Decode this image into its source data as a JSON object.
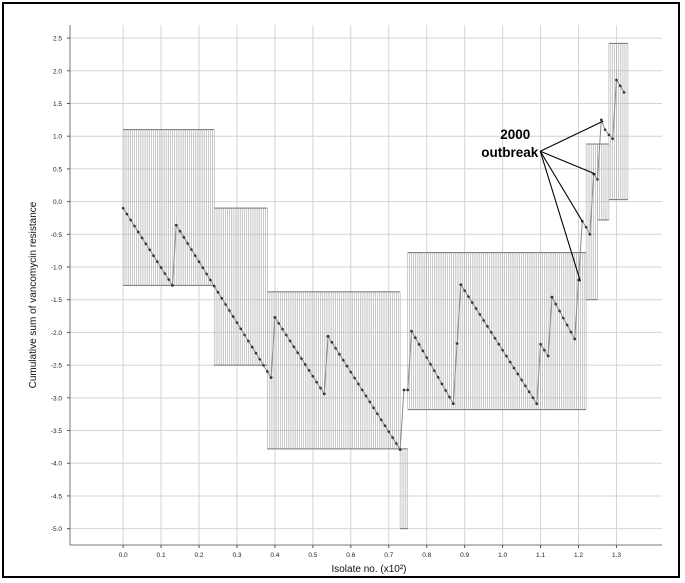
{
  "chart_data": {
    "type": "line",
    "xlabel": "Isolate no. (x10²)",
    "ylabel": "Cumulative sum of vancomycin resistance",
    "xlim": [
      -0.14,
      1.42
    ],
    "ylim": [
      -5.25,
      2.7
    ],
    "x_ticks": [
      "0.0",
      "0.1",
      "0.2",
      "0.3",
      "0.4",
      "0.5",
      "0.6",
      "0.7",
      "0.8",
      "0.9",
      "1.0",
      "1.1",
      "1.2",
      "1.3"
    ],
    "x_tick_values": [
      0.0,
      0.1,
      0.2,
      0.3,
      0.4,
      0.5,
      0.6,
      0.7,
      0.8,
      0.9,
      1.0,
      1.1,
      1.2,
      1.3
    ],
    "y_ticks": [
      "2.5",
      "2.0",
      "1.5",
      "1.0",
      "0.5",
      "0.0",
      "-0.5",
      "-1.0",
      "-1.5",
      "-2.0",
      "-2.5",
      "-3.0",
      "-3.5",
      "-4.0",
      "-4.5",
      "-5.0"
    ],
    "y_tick_values": [
      2.5,
      2.0,
      1.5,
      1.0,
      0.5,
      0.0,
      -0.5,
      -1.0,
      -1.5,
      -2.0,
      -2.5,
      -3.0,
      -3.5,
      -4.0,
      -4.5,
      -5.0
    ],
    "grid": true,
    "annotation": {
      "lines": [
        "2000",
        "outbreak"
      ],
      "anchor": [
        1.0993,
        0.77
      ],
      "targets": [
        [
          1.265,
          1.23
        ],
        [
          1.245,
          0.42
        ],
        [
          1.21,
          -0.3
        ],
        [
          1.205,
          -1.22
        ]
      ]
    },
    "segments": [
      {
        "x": [
          0.0,
          0.01,
          0.02,
          0.03,
          0.04,
          0.05,
          0.06,
          0.07,
          0.08,
          0.09,
          0.1,
          0.11,
          0.12,
          0.13
        ],
        "y": [
          -0.1,
          -0.191,
          -0.282,
          -0.373,
          -0.464,
          -0.555,
          -0.646,
          -0.736,
          -0.827,
          -0.918,
          -1.009,
          -1.1,
          -1.191,
          -1.28
        ]
      },
      {
        "x": [
          0.13,
          0.14
        ],
        "y": [
          -1.28,
          -0.36
        ]
      },
      {
        "x": [
          0.14,
          0.15,
          0.16,
          0.17,
          0.18,
          0.19,
          0.2,
          0.21,
          0.22,
          0.23,
          0.24,
          0.25,
          0.26,
          0.27,
          0.28,
          0.29,
          0.3,
          0.31,
          0.32,
          0.33,
          0.34,
          0.35,
          0.36,
          0.37,
          0.38,
          0.39
        ],
        "y": [
          -0.36,
          -0.453,
          -0.546,
          -0.64,
          -0.733,
          -0.826,
          -0.919,
          -1.012,
          -1.106,
          -1.199,
          -1.292,
          -1.385,
          -1.478,
          -1.572,
          -1.665,
          -1.758,
          -1.851,
          -1.944,
          -2.038,
          -2.131,
          -2.224,
          -2.317,
          -2.41,
          -2.504,
          -2.597,
          -2.69
        ]
      },
      {
        "x": [
          0.39,
          0.4
        ],
        "y": [
          -2.69,
          -1.77
        ]
      },
      {
        "x": [
          0.4,
          0.41,
          0.42,
          0.43,
          0.44,
          0.45,
          0.46,
          0.47,
          0.48,
          0.49,
          0.5,
          0.51,
          0.52,
          0.53
        ],
        "y": [
          -1.77,
          -1.86,
          -1.95,
          -2.04,
          -2.13,
          -2.22,
          -2.31,
          -2.4,
          -2.49,
          -2.58,
          -2.67,
          -2.76,
          -2.85,
          -2.94
        ]
      },
      {
        "x": [
          0.53,
          0.54
        ],
        "y": [
          -2.94,
          -2.06
        ]
      },
      {
        "x": [
          0.54,
          0.55,
          0.56,
          0.57,
          0.58,
          0.59,
          0.6,
          0.61,
          0.62,
          0.63,
          0.64,
          0.65,
          0.66,
          0.67,
          0.68,
          0.69,
          0.7,
          0.71,
          0.72,
          0.73
        ],
        "y": [
          -2.06,
          -2.151,
          -2.242,
          -2.333,
          -2.424,
          -2.515,
          -2.606,
          -2.697,
          -2.788,
          -2.879,
          -2.971,
          -3.062,
          -3.153,
          -3.244,
          -3.335,
          -3.426,
          -3.517,
          -3.608,
          -3.699,
          -3.79
        ]
      },
      {
        "x": [
          0.73,
          0.74,
          0.75,
          0.76
        ],
        "y": [
          -3.79,
          -2.88,
          -2.88,
          -1.98
        ]
      },
      {
        "x": [
          0.76,
          0.77,
          0.78,
          0.79,
          0.8,
          0.81,
          0.82,
          0.83,
          0.84,
          0.85,
          0.86,
          0.87
        ],
        "y": [
          -1.98,
          -2.081,
          -2.182,
          -2.283,
          -2.384,
          -2.485,
          -2.585,
          -2.686,
          -2.787,
          -2.888,
          -2.989,
          -3.09
        ]
      },
      {
        "x": [
          0.87,
          0.88,
          0.89
        ],
        "y": [
          -3.09,
          -2.17,
          -1.27
        ]
      },
      {
        "x": [
          0.89,
          0.9,
          0.91,
          0.92,
          0.93,
          0.94,
          0.95,
          0.96,
          0.97,
          0.98,
          0.99,
          1.0,
          1.01,
          1.02,
          1.03,
          1.04,
          1.05,
          1.06,
          1.07,
          1.08,
          1.09
        ],
        "y": [
          -1.27,
          -1.361,
          -1.452,
          -1.543,
          -1.634,
          -1.725,
          -1.816,
          -1.907,
          -1.998,
          -2.089,
          -2.18,
          -2.271,
          -2.362,
          -2.453,
          -2.544,
          -2.635,
          -2.726,
          -2.817,
          -2.908,
          -2.999,
          -3.09
        ]
      },
      {
        "x": [
          1.09,
          1.1,
          1.11,
          1.12,
          1.13
        ],
        "y": [
          -3.09,
          -2.18,
          -2.27,
          -2.36,
          -1.46
        ]
      },
      {
        "x": [
          1.13,
          1.14,
          1.15,
          1.16,
          1.17,
          1.18,
          1.19
        ],
        "y": [
          -1.46,
          -1.567,
          -1.673,
          -1.78,
          -1.887,
          -1.993,
          -2.1
        ]
      },
      {
        "x": [
          1.19,
          1.2,
          1.21,
          1.22,
          1.23,
          1.24,
          1.25,
          1.26,
          1.27,
          1.28,
          1.29,
          1.3,
          1.31,
          1.32
        ],
        "y": [
          -2.1,
          -1.2,
          -0.3,
          -0.39,
          -0.5,
          0.42,
          0.34,
          1.25,
          1.1,
          1.02,
          0.96,
          1.86,
          1.77,
          1.67
        ]
      }
    ],
    "control_bands": [
      {
        "x_start": 0.0,
        "x_end": 0.24,
        "upper": 1.1,
        "lower": -1.28
      },
      {
        "x_start": 0.24,
        "x_end": 0.38,
        "upper": -0.1,
        "lower": -2.5
      },
      {
        "x_start": 0.38,
        "x_end": 0.73,
        "upper": -1.38,
        "lower": -3.78
      },
      {
        "x_start": 0.73,
        "x_end": 0.75,
        "upper": -3.78,
        "lower": -5.0
      },
      {
        "x_start": 0.75,
        "x_end": 1.22,
        "upper": -0.78,
        "lower": -3.18
      },
      {
        "x_start": 1.22,
        "x_end": 1.25,
        "upper": 0.88,
        "lower": -1.5
      },
      {
        "x_start": 1.25,
        "x_end": 1.28,
        "upper": 0.88,
        "lower": -0.28
      },
      {
        "x_start": 1.28,
        "x_end": 1.33,
        "upper": 2.42,
        "lower": 0.03
      }
    ]
  }
}
